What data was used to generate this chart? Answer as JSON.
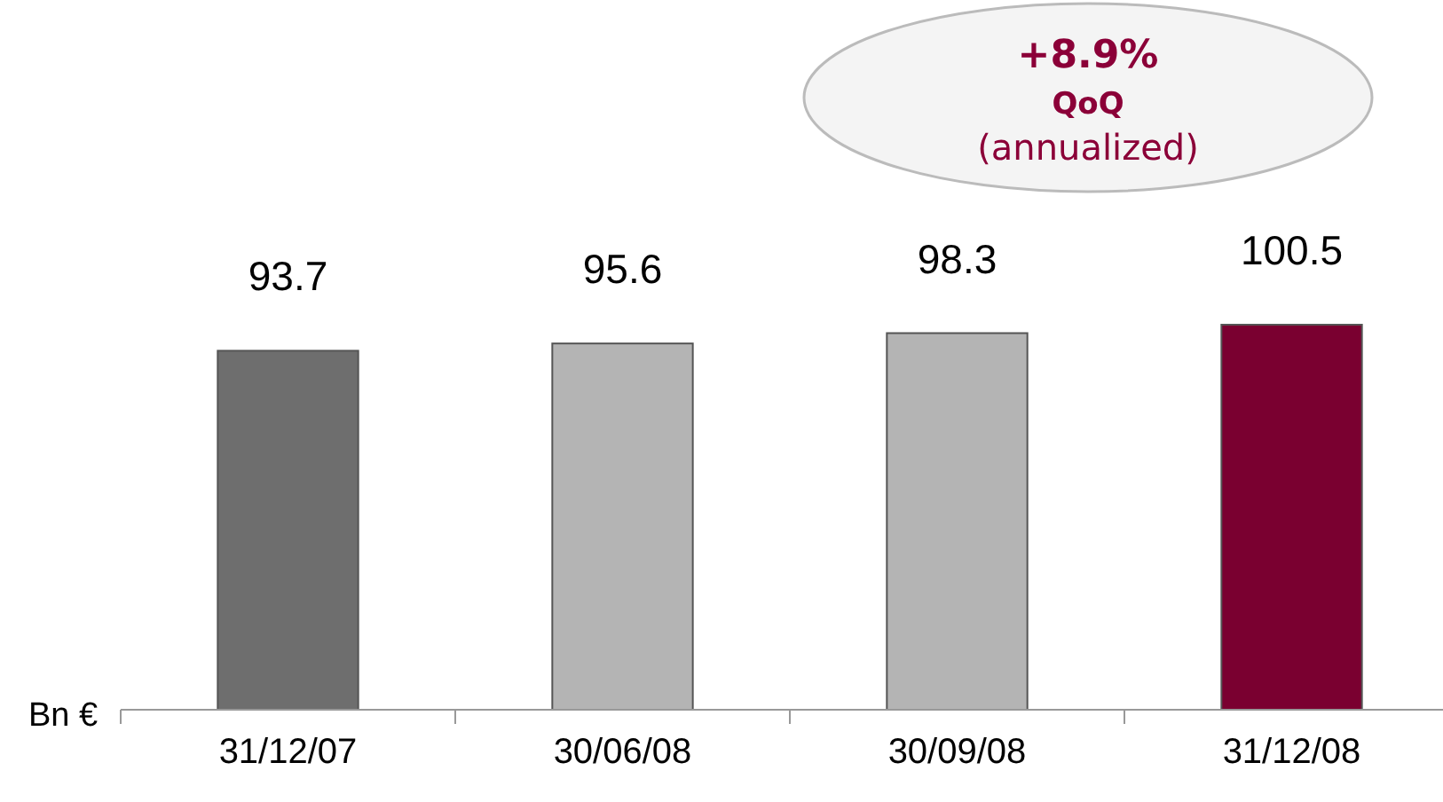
{
  "chart_data": {
    "type": "bar",
    "ylabel": "Bn €",
    "categories": [
      "31/12/07",
      "30/06/08",
      "30/09/08",
      "31/12/08"
    ],
    "values": [
      93.7,
      95.6,
      98.3,
      100.5
    ],
    "colors": [
      "#6e6e6e",
      "#b4b4b4",
      "#b4b4b4",
      "#7a0030"
    ],
    "data_labels": true,
    "annotations": [
      "+8.9%",
      "QoQ",
      "(annualized)"
    ]
  }
}
